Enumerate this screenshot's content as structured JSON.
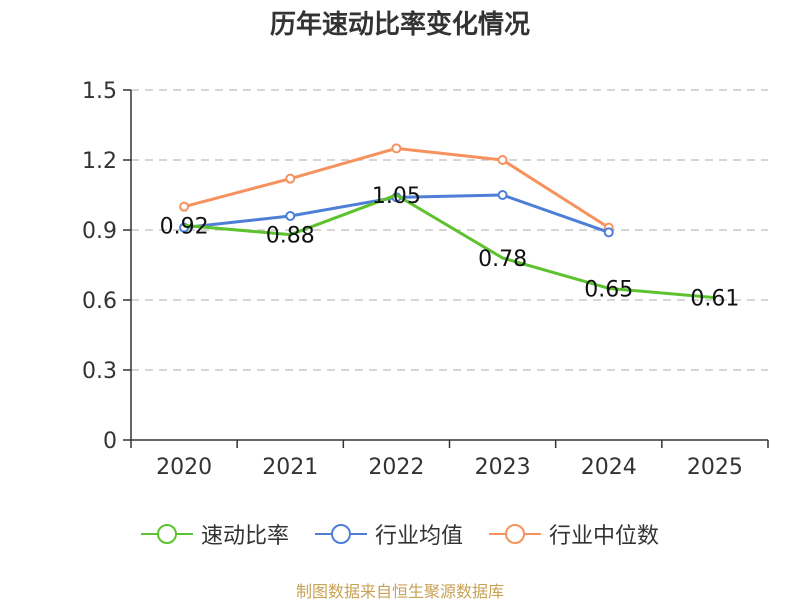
{
  "chart_data": {
    "type": "line",
    "title": "历年速动比率变化情况",
    "categories": [
      "2020",
      "2021",
      "2022",
      "2023",
      "2024",
      "2025"
    ],
    "ylim": [
      0,
      1.5
    ],
    "yticks": [
      "0",
      "0.3",
      "0.6",
      "0.9",
      "1.2",
      "1.5"
    ],
    "ytick_values": [
      0,
      0.3,
      0.6,
      0.9,
      1.2,
      1.5
    ],
    "grid": true,
    "legend_position": "bottom",
    "series": [
      {
        "name": "速动比率",
        "color": "#5cc22e",
        "values": [
          0.92,
          0.88,
          1.05,
          0.78,
          0.65,
          0.61
        ],
        "labels": [
          "0.92",
          "0.88",
          "1.05",
          "0.78",
          "0.65",
          "0.61"
        ],
        "show_labels": true
      },
      {
        "name": "行业均值",
        "color": "#4e7fd6",
        "values": [
          0.91,
          0.96,
          1.04,
          1.05,
          0.89,
          null
        ],
        "show_labels": false
      },
      {
        "name": "行业中位数",
        "color": "#f5925e",
        "values": [
          1.0,
          1.12,
          1.25,
          1.2,
          0.91,
          null
        ],
        "show_labels": false
      }
    ]
  },
  "source_note": "制图数据来自恒生聚源数据库"
}
